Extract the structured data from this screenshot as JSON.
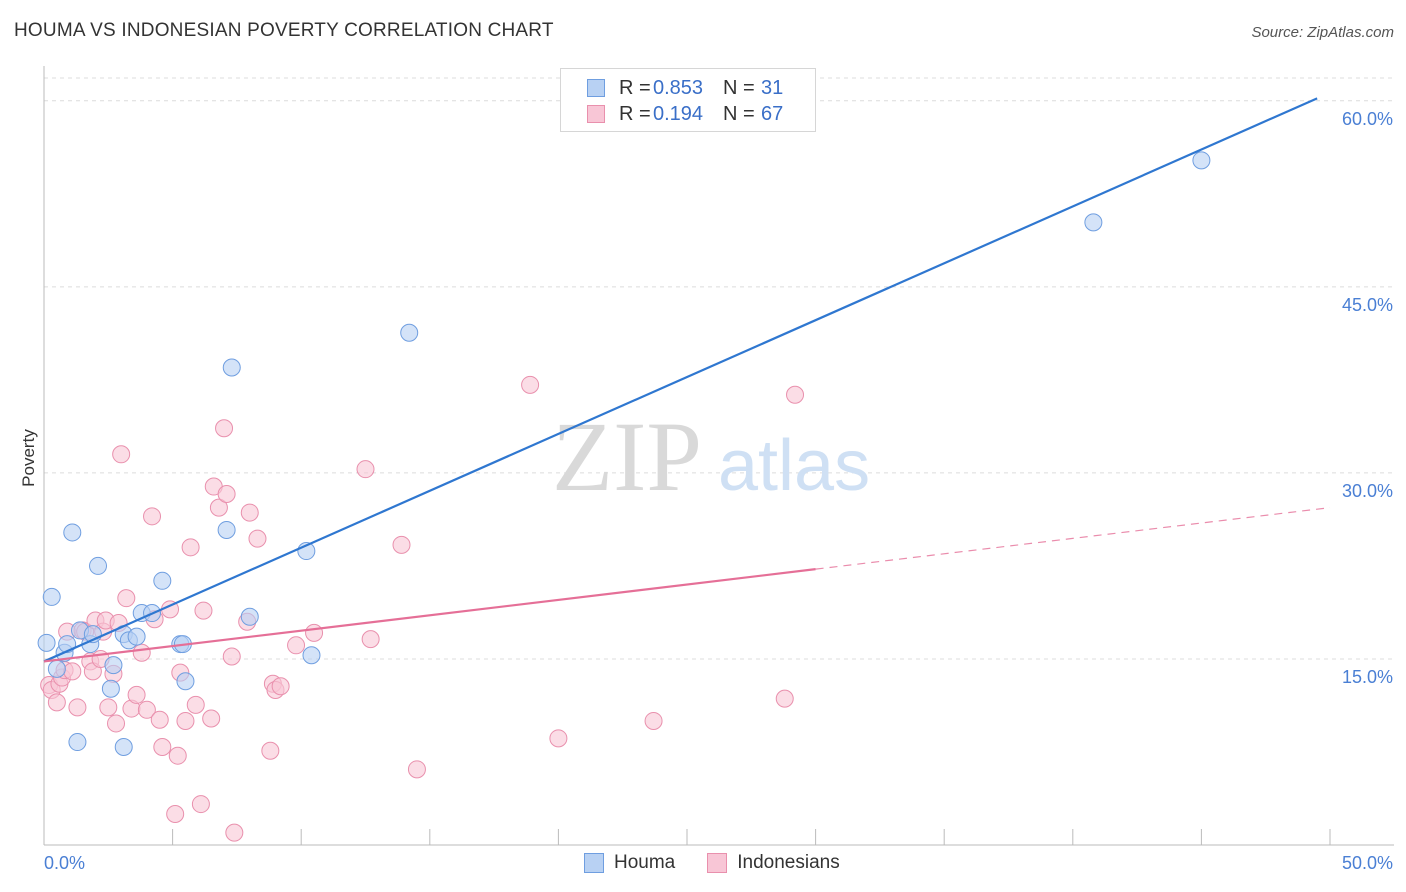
{
  "header": {
    "title": "HOUMA VS INDONESIAN POVERTY CORRELATION CHART",
    "source": "Source: ZipAtlas.com"
  },
  "watermark": {
    "zip": "ZIP",
    "atlas": "atlas"
  },
  "legend": {
    "rows": [
      {
        "r_label": "R =",
        "r_value": "0.853",
        "n_label": "N =",
        "n_value": "31"
      },
      {
        "r_label": "R =",
        "r_value": "0.194",
        "n_label": "N =",
        "n_value": "67"
      }
    ]
  },
  "bottom_legend": {
    "houma": "Houma",
    "indonesians": "Indonesians"
  },
  "colors": {
    "houma_fill": "#b8d1f3",
    "houma_stroke": "#6f9ee0",
    "houma_line": "#2f77d0",
    "indo_fill": "#f8c6d6",
    "indo_stroke": "#e990ad",
    "indo_line": "#e56f97",
    "grid": "#dcdcdc",
    "tick_text": "#4a7fd4"
  },
  "chart_data": {
    "type": "scatter",
    "title": "HOUMA VS INDONESIAN POVERTY CORRELATION CHART",
    "xlabel": "",
    "ylabel": "Poverty",
    "xlim": [
      0,
      50
    ],
    "ylim": [
      0,
      62
    ],
    "x_tick_labels": [
      "0.0%",
      "50.0%"
    ],
    "y_ticks": [
      15,
      30,
      45,
      60
    ],
    "y_tick_labels": [
      "15.0%",
      "30.0%",
      "45.0%",
      "60.0%"
    ],
    "grid": true,
    "series": [
      {
        "name": "Houma",
        "r": 0.853,
        "n": 31,
        "trend": {
          "x": [
            0,
            49.5
          ],
          "y": [
            14.8,
            60.2
          ],
          "dashed_from": null
        },
        "points": [
          [
            0.1,
            16.3
          ],
          [
            0.3,
            20.0
          ],
          [
            0.5,
            14.2
          ],
          [
            0.8,
            15.5
          ],
          [
            0.9,
            16.2
          ],
          [
            1.1,
            25.2
          ],
          [
            1.3,
            8.3
          ],
          [
            1.4,
            17.3
          ],
          [
            1.8,
            16.2
          ],
          [
            1.9,
            17.0
          ],
          [
            2.1,
            22.5
          ],
          [
            2.6,
            12.6
          ],
          [
            2.7,
            14.5
          ],
          [
            3.1,
            7.9
          ],
          [
            3.1,
            17.0
          ],
          [
            3.3,
            16.5
          ],
          [
            3.6,
            16.8
          ],
          [
            3.8,
            18.7
          ],
          [
            4.2,
            18.7
          ],
          [
            4.6,
            21.3
          ],
          [
            5.3,
            16.2
          ],
          [
            5.4,
            16.2
          ],
          [
            5.5,
            13.2
          ],
          [
            7.1,
            25.4
          ],
          [
            7.3,
            38.5
          ],
          [
            8.0,
            18.4
          ],
          [
            10.2,
            23.7
          ],
          [
            10.4,
            15.3
          ],
          [
            14.2,
            41.3
          ],
          [
            40.8,
            50.2
          ],
          [
            45.0,
            55.2
          ]
        ]
      },
      {
        "name": "Indonesians",
        "r": 0.194,
        "n": 67,
        "trend": {
          "x": [
            0,
            50
          ],
          "y": [
            14.8,
            27.2
          ],
          "dashed_from": 30
        },
        "points": [
          [
            0.2,
            12.9
          ],
          [
            0.3,
            12.5
          ],
          [
            0.5,
            11.5
          ],
          [
            0.6,
            13.0
          ],
          [
            0.7,
            13.5
          ],
          [
            0.8,
            14.1
          ],
          [
            0.9,
            17.2
          ],
          [
            1.1,
            14.0
          ],
          [
            1.3,
            11.1
          ],
          [
            1.5,
            17.3
          ],
          [
            1.6,
            17.2
          ],
          [
            1.8,
            14.8
          ],
          [
            1.9,
            14.0
          ],
          [
            2.0,
            18.1
          ],
          [
            2.2,
            15.0
          ],
          [
            2.3,
            17.2
          ],
          [
            2.4,
            18.1
          ],
          [
            2.5,
            11.1
          ],
          [
            2.7,
            13.8
          ],
          [
            2.8,
            9.8
          ],
          [
            2.9,
            17.9
          ],
          [
            3.0,
            31.5
          ],
          [
            3.2,
            19.9
          ],
          [
            3.4,
            11.0
          ],
          [
            3.6,
            12.1
          ],
          [
            3.8,
            15.5
          ],
          [
            4.0,
            10.9
          ],
          [
            4.2,
            26.5
          ],
          [
            4.3,
            18.2
          ],
          [
            4.5,
            10.1
          ],
          [
            4.6,
            7.9
          ],
          [
            4.9,
            19.0
          ],
          [
            5.1,
            2.5
          ],
          [
            5.2,
            7.2
          ],
          [
            5.3,
            13.9
          ],
          [
            5.5,
            10.0
          ],
          [
            5.7,
            24.0
          ],
          [
            5.9,
            11.3
          ],
          [
            6.1,
            3.3
          ],
          [
            6.2,
            18.9
          ],
          [
            6.5,
            10.2
          ],
          [
            6.6,
            28.9
          ],
          [
            6.8,
            27.2
          ],
          [
            7.0,
            33.6
          ],
          [
            7.1,
            28.3
          ],
          [
            7.3,
            15.2
          ],
          [
            7.4,
            1.0
          ],
          [
            7.9,
            18.0
          ],
          [
            8.0,
            26.8
          ],
          [
            8.3,
            24.7
          ],
          [
            8.8,
            7.6
          ],
          [
            8.9,
            13.0
          ],
          [
            9.0,
            12.5
          ],
          [
            9.2,
            12.8
          ],
          [
            9.8,
            16.1
          ],
          [
            10.5,
            17.1
          ],
          [
            12.5,
            30.3
          ],
          [
            12.7,
            16.6
          ],
          [
            13.9,
            24.2
          ],
          [
            14.5,
            6.1
          ],
          [
            18.9,
            37.1
          ],
          [
            20.0,
            8.6
          ],
          [
            23.7,
            10.0
          ],
          [
            28.8,
            11.8
          ],
          [
            29.2,
            36.3
          ]
        ]
      }
    ]
  }
}
